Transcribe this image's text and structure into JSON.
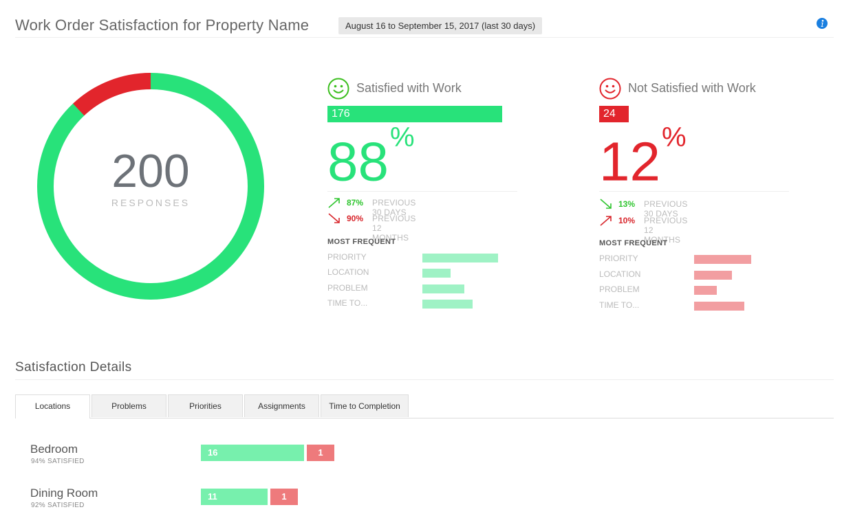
{
  "header": {
    "title": "Work Order Satisfaction for Property Name",
    "date_range": "August 16 to September 15, 2017 (last 30 days)",
    "info_icon": "info-icon"
  },
  "summary": {
    "total": "200",
    "label": "RESPONSES",
    "satisfied_fraction": 0.88,
    "colors": {
      "satisfied": "#28e27a",
      "not_satisfied": "#e2252c"
    }
  },
  "satisfied": {
    "heading": "Satisfied with Work",
    "count": "176",
    "percent": "88",
    "percent_sign": "%",
    "trends": [
      {
        "value": "87%",
        "label": "PREVIOUS 30 DAYS",
        "direction": "up"
      },
      {
        "value": "90%",
        "label": "PREVIOUS 12 MONTHS",
        "direction": "down"
      }
    ],
    "most_frequent_title": "MOST FREQUENT",
    "most_frequent": [
      {
        "label": "PRIORITY",
        "fraction": 0.8
      },
      {
        "label": "LOCATION",
        "fraction": 0.3
      },
      {
        "label": "PROBLEM",
        "fraction": 0.44
      },
      {
        "label": "TIME TO...",
        "fraction": 0.53
      }
    ]
  },
  "not_satisfied": {
    "heading": "Not Satisfied with Work",
    "count": "24",
    "percent": "12",
    "percent_sign": "%",
    "trends": [
      {
        "value": "13%",
        "label": "PREVIOUS 30 DAYS",
        "direction": "down"
      },
      {
        "value": "10%",
        "label": "PREVIOUS 12 MONTHS",
        "direction": "up"
      }
    ],
    "most_frequent_title": "MOST FREQUENT",
    "most_frequent": [
      {
        "label": "PRIORITY",
        "fraction": 0.6
      },
      {
        "label": "LOCATION",
        "fraction": 0.4
      },
      {
        "label": "PROBLEM",
        "fraction": 0.24
      },
      {
        "label": "TIME TO...",
        "fraction": 0.53
      }
    ]
  },
  "details": {
    "title": "Satisfaction Details",
    "tabs": [
      {
        "label": "Locations",
        "active": true
      },
      {
        "label": "Problems",
        "active": false
      },
      {
        "label": "Priorities",
        "active": false
      },
      {
        "label": "Assignments",
        "active": false
      },
      {
        "label": "Time to Completion",
        "active": false
      }
    ],
    "locations": [
      {
        "name": "Bedroom",
        "subtitle": "94% SATISFIED",
        "satisfied": "16",
        "not_satisfied": "1"
      },
      {
        "name": "Dining Room",
        "subtitle": "92% SATISFIED",
        "satisfied": "11",
        "not_satisfied": "1"
      }
    ]
  }
}
